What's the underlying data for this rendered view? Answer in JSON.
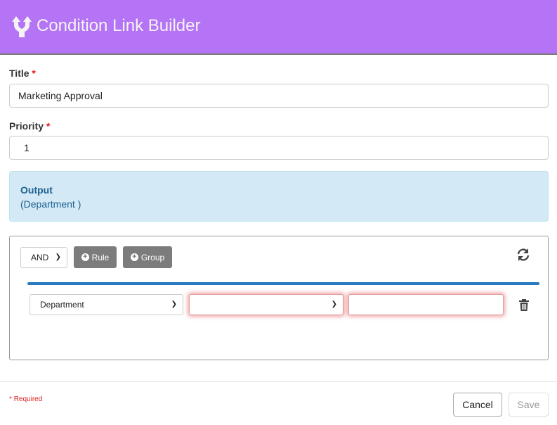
{
  "header": {
    "title": "Condition Link Builder",
    "icon": "split-arrows-icon",
    "color": "#b574f6"
  },
  "form": {
    "title_label": "Title",
    "title_value": "Marketing Approval",
    "priority_label": "Priority",
    "priority_value": "1",
    "required_mark": "*"
  },
  "output": {
    "heading": "Output",
    "value": "(Department )"
  },
  "query": {
    "condition": "AND",
    "add_rule": "Rule",
    "add_group": "Group",
    "rule": {
      "field": "Department",
      "operator": "",
      "value": ""
    }
  },
  "footer": {
    "required_note": "Required",
    "cancel": "Cancel",
    "save": "Save"
  }
}
